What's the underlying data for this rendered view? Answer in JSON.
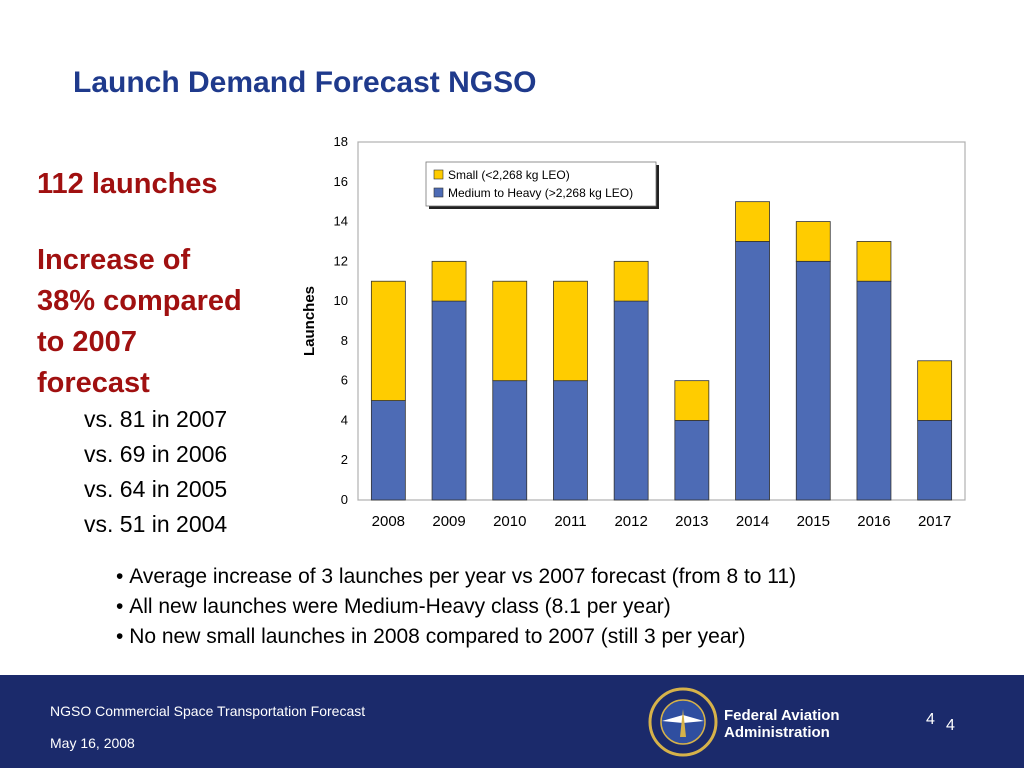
{
  "slide": {
    "title": "Launch Demand Forecast NGSO",
    "headline_total": "112 launches",
    "headline_increase_lines": [
      "Increase of",
      "38% compared",
      "to 2007",
      "forecast"
    ],
    "comparisons": [
      "vs. 81 in 2007",
      "vs. 69 in 2006",
      "vs. 64 in 2005",
      "vs. 51 in 2004"
    ],
    "bullets": [
      "Average increase of 3 launches per year vs 2007 forecast (from 8 to 11)",
      "All new launches were Medium-Heavy class  (8.1 per year)",
      "No new small launches in 2008 compared to 2007 (still 3 per year)"
    ]
  },
  "footer": {
    "title": "NGSO Commercial Space Transportation Forecast",
    "date": "May 16, 2008",
    "agency_lines": [
      "Federal Aviation",
      "Administration"
    ],
    "page_number": "4",
    "page_number_repeat": "4",
    "logo_icon": "faa-seal-icon"
  },
  "chart_data": {
    "type": "bar",
    "stacked": true,
    "categories": [
      "2008",
      "2009",
      "2010",
      "2011",
      "2012",
      "2013",
      "2014",
      "2015",
      "2016",
      "2017"
    ],
    "series": [
      {
        "name": "Medium to Heavy (>2,268 kg LEO)",
        "color": "#4d6bb5",
        "values": [
          5,
          10,
          6,
          6,
          10,
          4,
          13,
          12,
          11,
          4
        ]
      },
      {
        "name": "Small (<2,268 kg LEO)",
        "color": "#ffcc00",
        "values": [
          6,
          2,
          5,
          5,
          2,
          2,
          2,
          2,
          2,
          3
        ]
      }
    ],
    "legend_order": [
      1,
      0
    ],
    "ylabel": "Launches",
    "ylim": [
      0,
      18
    ],
    "yticks": [
      0,
      2,
      4,
      6,
      8,
      10,
      12,
      14,
      16,
      18
    ],
    "grid": false,
    "legend_position": "top-left"
  }
}
